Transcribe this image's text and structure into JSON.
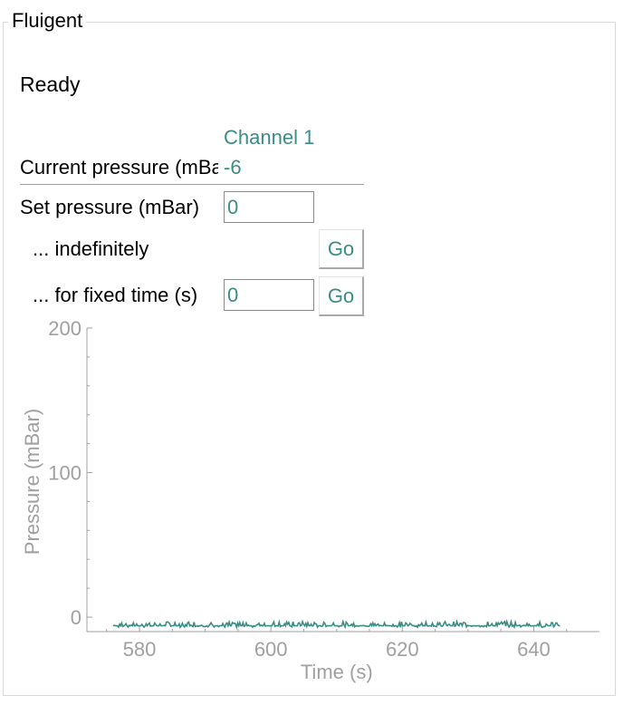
{
  "panel": {
    "title": "Fluigent"
  },
  "status": "Ready",
  "channel": {
    "header": "Channel 1",
    "current_pressure_label": "Current pressure (mBar)",
    "current_pressure_value": "-6",
    "set_pressure_label": "Set pressure (mBar)",
    "set_pressure_value": "0",
    "indefinitely_label": "... indefinitely",
    "indefinitely_button": "Go",
    "fixed_time_label": "... for fixed time (s)",
    "fixed_time_value": "0",
    "fixed_time_button": "Go"
  },
  "colors": {
    "accent": "#3a8c86",
    "axis": "#a0a0a0"
  },
  "chart_data": {
    "type": "line",
    "xlabel": "Time (s)",
    "ylabel": "Pressure (mBar)",
    "xlim": [
      572,
      650
    ],
    "ylim": [
      -10,
      200
    ],
    "xticks": [
      580,
      600,
      620,
      640
    ],
    "yticks": [
      0,
      100,
      200
    ],
    "grid": false,
    "series": [
      {
        "color": "#3a8c86",
        "x_start": 576,
        "x_end": 644,
        "baseline": -6,
        "noise_range": [
          -7,
          -3
        ]
      }
    ]
  }
}
